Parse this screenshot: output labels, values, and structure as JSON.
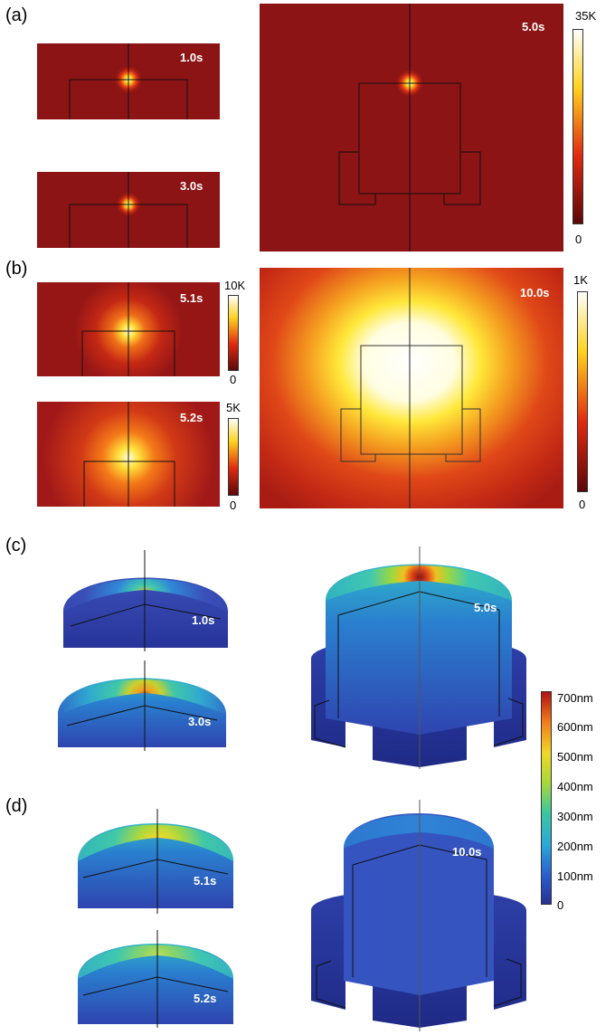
{
  "panels": {
    "a": {
      "label": "(a)",
      "times": [
        "1.0s",
        "3.0s",
        "5.0s"
      ],
      "colorbar": {
        "max": "35K",
        "min": "0"
      }
    },
    "b": {
      "label": "(b)",
      "times": [
        "5.1s",
        "5.2s",
        "10.0s"
      ],
      "colorbars": [
        {
          "max": "10K",
          "min": "0"
        },
        {
          "max": "5K",
          "min": "0"
        },
        {
          "max": "1K",
          "min": "0"
        }
      ]
    },
    "c": {
      "label": "(c)",
      "times": [
        "1.0s",
        "3.0s",
        "5.0s"
      ]
    },
    "d": {
      "label": "(d)",
      "times": [
        "5.1s",
        "5.2s",
        "10.0s"
      ]
    },
    "displacement_colorbar": {
      "ticks": [
        "700nm",
        "600nm",
        "500nm",
        "400nm",
        "300nm",
        "200nm",
        "100nm",
        "0"
      ]
    }
  },
  "colors": {
    "thermal_background": "#8c1414",
    "deformation_low": "#2b3aa0",
    "deformation_high": "#b01010"
  }
}
